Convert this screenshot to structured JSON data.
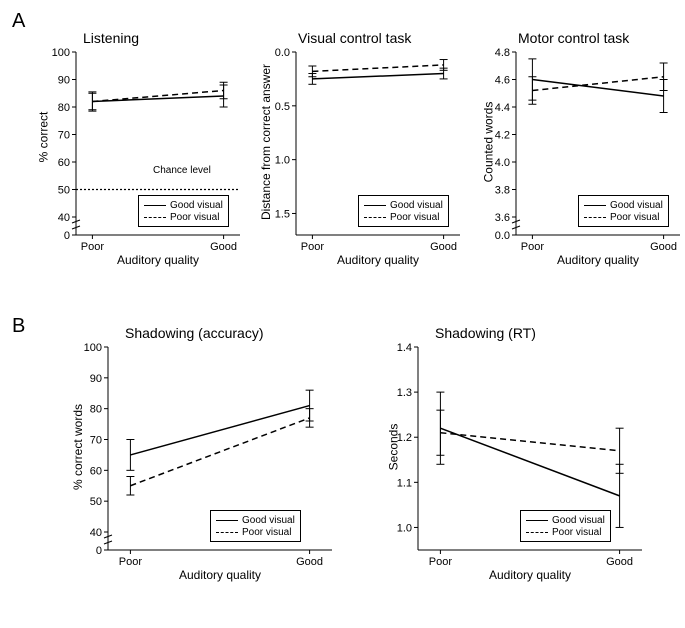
{
  "panelA": {
    "label": "A",
    "charts": [
      {
        "id": "listening",
        "title": "Listening",
        "ylabel": "% correct",
        "xlabel": "Auditory quality",
        "xticks": [
          "Poor",
          "Good"
        ],
        "yticks": [
          0,
          40,
          50,
          60,
          70,
          80,
          90,
          100
        ],
        "ytick_labels": [
          "0",
          "40",
          "50",
          "60",
          "70",
          "80",
          "90",
          "100"
        ],
        "ylim": [
          0,
          100
        ],
        "break_after": 0,
        "inverted": false,
        "series": [
          {
            "name": "Good visual",
            "style": "solid",
            "y": [
              82,
              84
            ],
            "err": [
              3.5,
              4
            ]
          },
          {
            "name": "Poor visual",
            "style": "dashed",
            "y": [
              82,
              86
            ],
            "err": [
              3,
              3
            ]
          }
        ],
        "chance": {
          "y": 50,
          "label": "Chance level"
        },
        "colors": {
          "line": "#000000",
          "bg": "#ffffff"
        }
      },
      {
        "id": "visual-control",
        "title": "Visual control task",
        "ylabel": "Distance from correct answer",
        "xlabel": "Auditory quality",
        "xticks": [
          "Poor",
          "Good"
        ],
        "yticks": [
          0.0,
          0.5,
          1.0,
          1.5
        ],
        "ytick_labels": [
          "0.0",
          "0.5",
          "1.0",
          "1.5"
        ],
        "ylim": [
          0,
          1.7
        ],
        "inverted": true,
        "series": [
          {
            "name": "Good visual",
            "style": "solid",
            "y": [
              0.25,
              0.2
            ],
            "err": [
              0.05,
              0.05
            ]
          },
          {
            "name": "Poor visual",
            "style": "dashed",
            "y": [
              0.18,
              0.12
            ],
            "err": [
              0.05,
              0.05
            ]
          }
        ],
        "colors": {
          "line": "#000000",
          "bg": "#ffffff"
        }
      },
      {
        "id": "motor-control",
        "title": "Motor control task",
        "ylabel": "Counted words",
        "xlabel": "Auditory quality",
        "xticks": [
          "Poor",
          "Good"
        ],
        "yticks": [
          0.0,
          3.6,
          3.8,
          4.0,
          4.2,
          4.4,
          4.6,
          4.8
        ],
        "ytick_labels": [
          "0.0",
          "3.6",
          "3.8",
          "4.0",
          "4.2",
          "4.4",
          "4.6",
          "4.8"
        ],
        "ylim": [
          0,
          4.8
        ],
        "break_after": 0,
        "inverted": false,
        "series": [
          {
            "name": "Good visual",
            "style": "solid",
            "y": [
              4.6,
              4.48
            ],
            "err": [
              0.15,
              0.12
            ]
          },
          {
            "name": "Poor visual",
            "style": "dashed",
            "y": [
              4.52,
              4.62
            ],
            "err": [
              0.1,
              0.1
            ]
          }
        ],
        "colors": {
          "line": "#000000",
          "bg": "#ffffff"
        }
      }
    ]
  },
  "panelB": {
    "label": "B",
    "charts": [
      {
        "id": "shadowing-acc",
        "title": "Shadowing (accuracy)",
        "ylabel": "% correct words",
        "xlabel": "Auditory quality",
        "xticks": [
          "Poor",
          "Good"
        ],
        "yticks": [
          0,
          40,
          50,
          60,
          70,
          80,
          90,
          100
        ],
        "ytick_labels": [
          "0",
          "40",
          "50",
          "60",
          "70",
          "80",
          "90",
          "100"
        ],
        "ylim": [
          0,
          100
        ],
        "break_after": 0,
        "inverted": false,
        "series": [
          {
            "name": "Good visual",
            "style": "solid",
            "y": [
              65,
              81
            ],
            "err": [
              5,
              5
            ]
          },
          {
            "name": "Poor visual",
            "style": "dashed",
            "y": [
              55,
              77
            ],
            "err": [
              3,
              3
            ]
          }
        ],
        "colors": {
          "line": "#000000",
          "bg": "#ffffff"
        }
      },
      {
        "id": "shadowing-rt",
        "title": "Shadowing (RT)",
        "ylabel": "Seconds",
        "xlabel": "Auditory quality",
        "xticks": [
          "Poor",
          "Good"
        ],
        "yticks": [
          1.0,
          1.1,
          1.2,
          1.3,
          1.4
        ],
        "ytick_labels": [
          "1.0",
          "1.1",
          "1.2",
          "1.3",
          "1.4"
        ],
        "ylim": [
          0.95,
          1.4
        ],
        "inverted": false,
        "series": [
          {
            "name": "Good visual",
            "style": "solid",
            "y": [
              1.22,
              1.07
            ],
            "err": [
              0.08,
              0.07
            ]
          },
          {
            "name": "Poor visual",
            "style": "dashed",
            "y": [
              1.21,
              1.17
            ],
            "err": [
              0.05,
              0.05
            ]
          }
        ],
        "colors": {
          "line": "#000000",
          "bg": "#ffffff"
        }
      }
    ]
  },
  "legend": {
    "good": "Good visual",
    "poor": "Poor visual"
  }
}
